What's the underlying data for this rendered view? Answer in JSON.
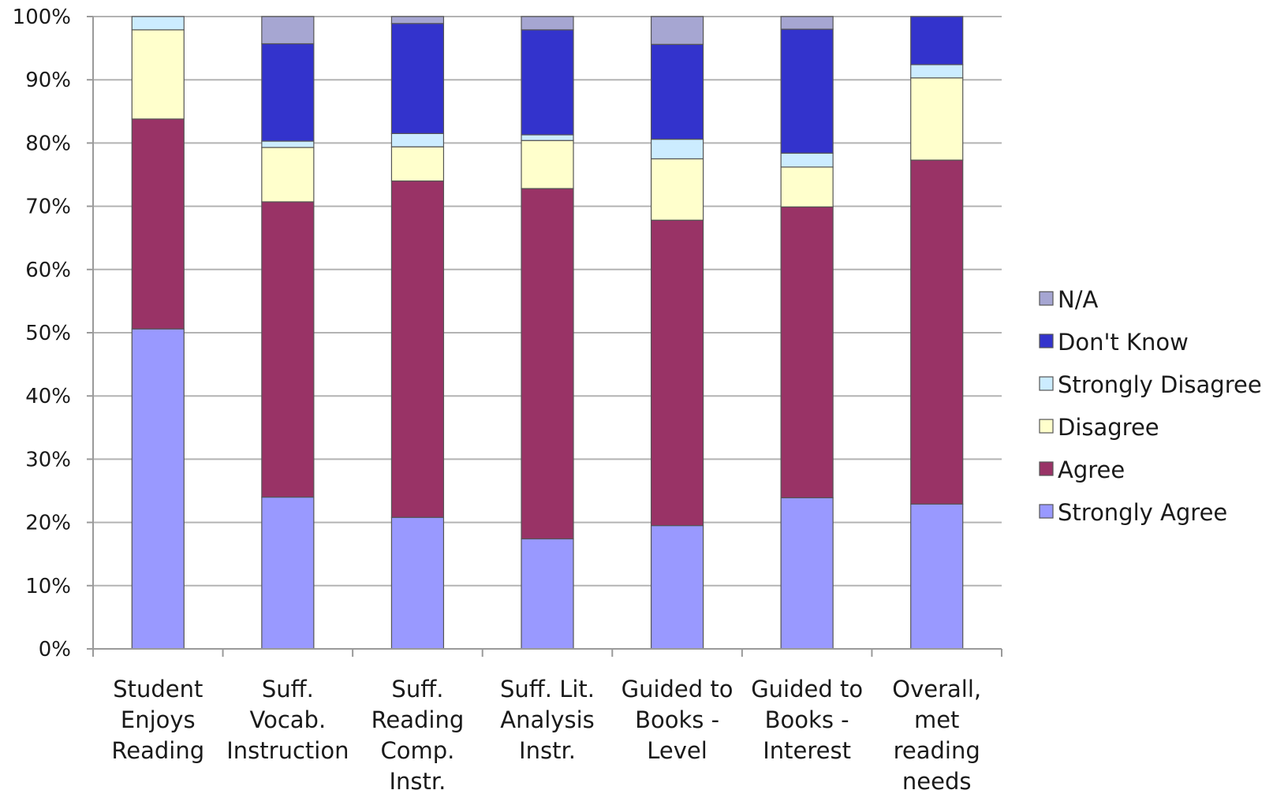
{
  "chart_data": {
    "type": "bar",
    "stacked": true,
    "percent": true,
    "title": "",
    "xlabel": "",
    "ylabel": "",
    "ylim": [
      0,
      100
    ],
    "grid": true,
    "legend_position": "right",
    "y_ticks": [
      "0%",
      "10%",
      "20%",
      "30%",
      "40%",
      "50%",
      "60%",
      "70%",
      "80%",
      "90%",
      "100%"
    ],
    "categories": [
      [
        "Student",
        "Enjoys",
        "Reading"
      ],
      [
        "Suff.",
        "Vocab.",
        "Instruction"
      ],
      [
        "Suff.",
        "Reading",
        "Comp.",
        "Instr."
      ],
      [
        "Suff. Lit.",
        "Analysis",
        "Instr."
      ],
      [
        "Guided to",
        "Books -",
        "Level"
      ],
      [
        "Guided to",
        "Books -",
        "Interest"
      ],
      [
        "Overall,",
        "met",
        "reading",
        "needs"
      ]
    ],
    "series": [
      {
        "name": "Strongly Agree",
        "color": "#9999ff",
        "values": [
          50.6,
          24.0,
          20.8,
          17.4,
          19.5,
          23.9,
          22.9
        ]
      },
      {
        "name": "Agree",
        "color": "#993366",
        "values": [
          33.2,
          46.7,
          53.2,
          55.4,
          48.3,
          46.0,
          54.4
        ]
      },
      {
        "name": "Disagree",
        "color": "#ffffcc",
        "values": [
          14.1,
          8.6,
          5.4,
          7.6,
          9.7,
          6.3,
          13.0
        ]
      },
      {
        "name": "Strongly Disagree",
        "color": "#ccecff",
        "values": [
          2.1,
          1.0,
          2.1,
          0.9,
          3.1,
          2.2,
          2.1
        ]
      },
      {
        "name": "Don't Know",
        "color": "#3333cc",
        "values": [
          0,
          15.4,
          17.4,
          16.6,
          15.0,
          19.6,
          7.6
        ]
      },
      {
        "name": "N/A",
        "color": "#a6a6d2",
        "values": [
          0,
          4.3,
          1.1,
          2.1,
          4.4,
          2.0,
          0
        ]
      }
    ],
    "legend_order": [
      "N/A",
      "Don't Know",
      "Strongly Disagree",
      "Disagree",
      "Agree",
      "Strongly Agree"
    ]
  }
}
